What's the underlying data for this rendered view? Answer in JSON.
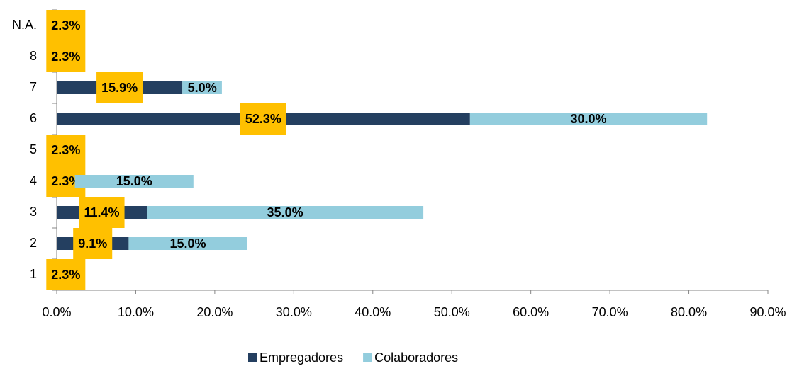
{
  "chart_data": {
    "type": "stacked_bar_horizontal",
    "categories": [
      "1",
      "2",
      "3",
      "4",
      "5",
      "6",
      "7",
      "8",
      "N.A."
    ],
    "series": [
      {
        "name": "Empregadores",
        "color": "#243f60",
        "values": [
          2.3,
          9.1,
          11.4,
          2.3,
          2.3,
          52.3,
          15.9,
          2.3,
          2.3
        ],
        "value_labels": [
          "2.3%",
          "9.1%",
          "11.4%",
          "2.3%",
          "2.3%",
          "52.3%",
          "15.9%",
          "2.3%",
          "2.3%"
        ]
      },
      {
        "name": "Colaboradores",
        "color": "#93cddd",
        "values": [
          null,
          15.0,
          35.0,
          15.0,
          null,
          30.0,
          5.0,
          null,
          null
        ],
        "value_labels": [
          null,
          "15.0%",
          "35.0%",
          "15.0%",
          null,
          "30.0%",
          "5.0%",
          null,
          null
        ]
      }
    ],
    "xlim": [
      0,
      90
    ],
    "xticks": [
      {
        "value": 0,
        "label": "0.0%"
      },
      {
        "value": 10,
        "label": "10.0%"
      },
      {
        "value": 20,
        "label": "20.0%"
      },
      {
        "value": 30,
        "label": "30.0%"
      },
      {
        "value": 40,
        "label": "40.0%"
      },
      {
        "value": 50,
        "label": "50.0%"
      },
      {
        "value": 60,
        "label": "60.0%"
      },
      {
        "value": 70,
        "label": "70.0%"
      },
      {
        "value": 80,
        "label": "80.0%"
      },
      {
        "value": 90,
        "label": "90.0%"
      }
    ],
    "legend": "bottom"
  }
}
